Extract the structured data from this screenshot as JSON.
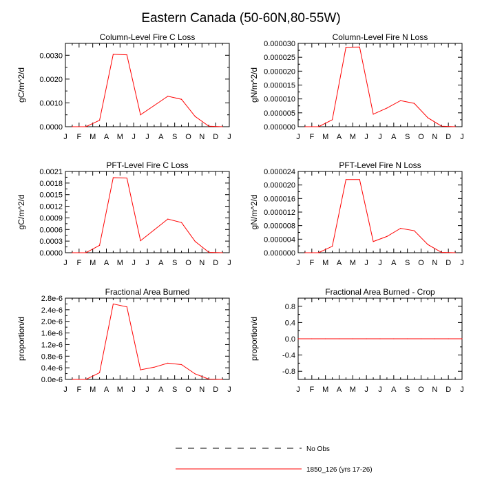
{
  "figure": {
    "title": "Eastern Canada (50-60N,80-55W)"
  },
  "months": [
    "J",
    "F",
    "M",
    "A",
    "M",
    "J",
    "J",
    "A",
    "S",
    "O",
    "N",
    "D",
    "J"
  ],
  "chart_data": [
    {
      "type": "line",
      "title": "Column-Level Fire C Loss",
      "ylabel": "gC/m^2/d",
      "ylim": [
        0,
        0.0035
      ],
      "yticks": [
        0,
        0.001,
        0.002,
        0.003
      ],
      "ytick_labels": [
        "0.0000",
        "0.0010",
        "0.0020",
        "0.0030"
      ],
      "x": [
        0.5,
        1.5,
        2.5,
        3.5,
        4.5,
        5.5,
        6.5,
        7.5,
        8.5,
        9.5,
        10.5,
        11.5
      ],
      "series": [
        {
          "values": [
            0.0,
            0.0,
            0.00027,
            0.00304,
            0.00302,
            0.0005,
            0.00089,
            0.00128,
            0.00115,
            0.00043,
            2e-05,
            0.0
          ]
        }
      ]
    },
    {
      "type": "line",
      "title": "Column-Level Fire N Loss",
      "ylabel": "gN/m^2/d",
      "ylim": [
        0,
        3e-05
      ],
      "yticks": [
        0,
        5e-06,
        1e-05,
        1.5e-05,
        2e-05,
        2.5e-05,
        3e-05
      ],
      "ytick_labels": [
        "0.000000",
        "0.000005",
        "0.000010",
        "0.000015",
        "0.000020",
        "0.000025",
        "0.000030"
      ],
      "x": [
        0.5,
        1.5,
        2.5,
        3.5,
        4.5,
        5.5,
        6.5,
        7.5,
        8.5,
        9.5,
        10.5,
        11.5
      ],
      "series": [
        {
          "values": [
            0.0,
            0.0,
            2.5e-06,
            2.86e-05,
            2.87e-05,
            4.5e-06,
            6.7e-06,
            9.4e-06,
            8.4e-06,
            3.2e-06,
            2e-07,
            0.0
          ]
        }
      ]
    },
    {
      "type": "line",
      "title": "PFT-Level Fire C Loss",
      "ylabel": "gC/m^2/d",
      "ylim": [
        0,
        0.0021
      ],
      "yticks": [
        0,
        0.0003,
        0.0006,
        0.0009,
        0.0012,
        0.0015,
        0.0018,
        0.0021
      ],
      "ytick_labels": [
        "0.0000",
        "0.0003",
        "0.0006",
        "0.0009",
        "0.0012",
        "0.0015",
        "0.0018",
        "0.0021"
      ],
      "x": [
        0.5,
        1.5,
        2.5,
        3.5,
        4.5,
        5.5,
        6.5,
        7.5,
        8.5,
        9.5,
        10.5,
        11.5
      ],
      "series": [
        {
          "values": [
            0.0,
            0.0,
            0.00019,
            0.00194,
            0.00193,
            0.00031,
            0.00059,
            0.00087,
            0.00078,
            0.00029,
            1e-05,
            0.0
          ]
        }
      ]
    },
    {
      "type": "line",
      "title": "PFT-Level Fire N Loss",
      "ylabel": "gN/m^2/d",
      "ylim": [
        0,
        2.4e-05
      ],
      "yticks": [
        0,
        4e-06,
        8e-06,
        1.2e-05,
        1.6e-05,
        2e-05,
        2.4e-05
      ],
      "ytick_labels": [
        "0.000000",
        "0.000004",
        "0.000008",
        "0.000012",
        "0.000016",
        "0.000020",
        "0.000024"
      ],
      "x": [
        0.5,
        1.5,
        2.5,
        3.5,
        4.5,
        5.5,
        6.5,
        7.5,
        8.5,
        9.5,
        10.5,
        11.5
      ],
      "series": [
        {
          "values": [
            0.0,
            0.0,
            1.9e-06,
            2.16e-05,
            2.16e-05,
            3.3e-06,
            4.8e-06,
            7.2e-06,
            6.5e-06,
            2.4e-06,
            1e-07,
            0.0
          ]
        }
      ]
    },
    {
      "type": "line",
      "title": "Fractional Area Burned",
      "ylabel": "proportion/d",
      "ylim": [
        0,
        2.8e-06
      ],
      "yticks": [
        0,
        4e-07,
        8e-07,
        1.2e-06,
        1.6e-06,
        2e-06,
        2.4e-06,
        2.8e-06
      ],
      "ytick_labels": [
        "0.0e-6",
        "0.4e-6",
        "0.8e-6",
        "1.2e-6",
        "1.6e-6",
        "2.0e-6",
        "2.4e-6",
        "2.8e-6"
      ],
      "x": [
        0.5,
        1.5,
        2.5,
        3.5,
        4.5,
        5.5,
        6.5,
        7.5,
        8.5,
        9.5,
        10.5,
        11.5
      ],
      "series": [
        {
          "values": [
            0.0,
            0.0,
            2.3e-07,
            2.6e-06,
            2.5e-06,
            3.3e-07,
            4.2e-07,
            5.6e-07,
            5.1e-07,
            1.9e-07,
            1e-08,
            0.0
          ]
        }
      ]
    },
    {
      "type": "line",
      "title": "Fractional Area Burned - Crop",
      "ylabel": "proportion/d",
      "ylim": [
        -1.0,
        1.0
      ],
      "yticks": [
        -0.8,
        -0.4,
        0,
        0.4,
        0.8
      ],
      "ytick_labels": [
        "-0.8",
        "-0.4",
        "0.0",
        "0.4",
        "0.8"
      ],
      "x": [
        0,
        1,
        2,
        3,
        4,
        5,
        6,
        7,
        8,
        9,
        10,
        11,
        12
      ],
      "series": [
        {
          "values": [
            0,
            0,
            0,
            0,
            0,
            0,
            0,
            0,
            0,
            0,
            0,
            0,
            0
          ]
        }
      ]
    }
  ],
  "legend": {
    "placement": "bottom-center",
    "entries": [
      {
        "label": "No Obs",
        "style": "dashed",
        "color": "#000000"
      },
      {
        "label": "1850_126 (yrs 17-26)",
        "style": "solid",
        "color": "#ff0000"
      }
    ]
  },
  "colors": {
    "series_line": "#ff0000",
    "axes": "#000000",
    "background": "#ffffff"
  }
}
